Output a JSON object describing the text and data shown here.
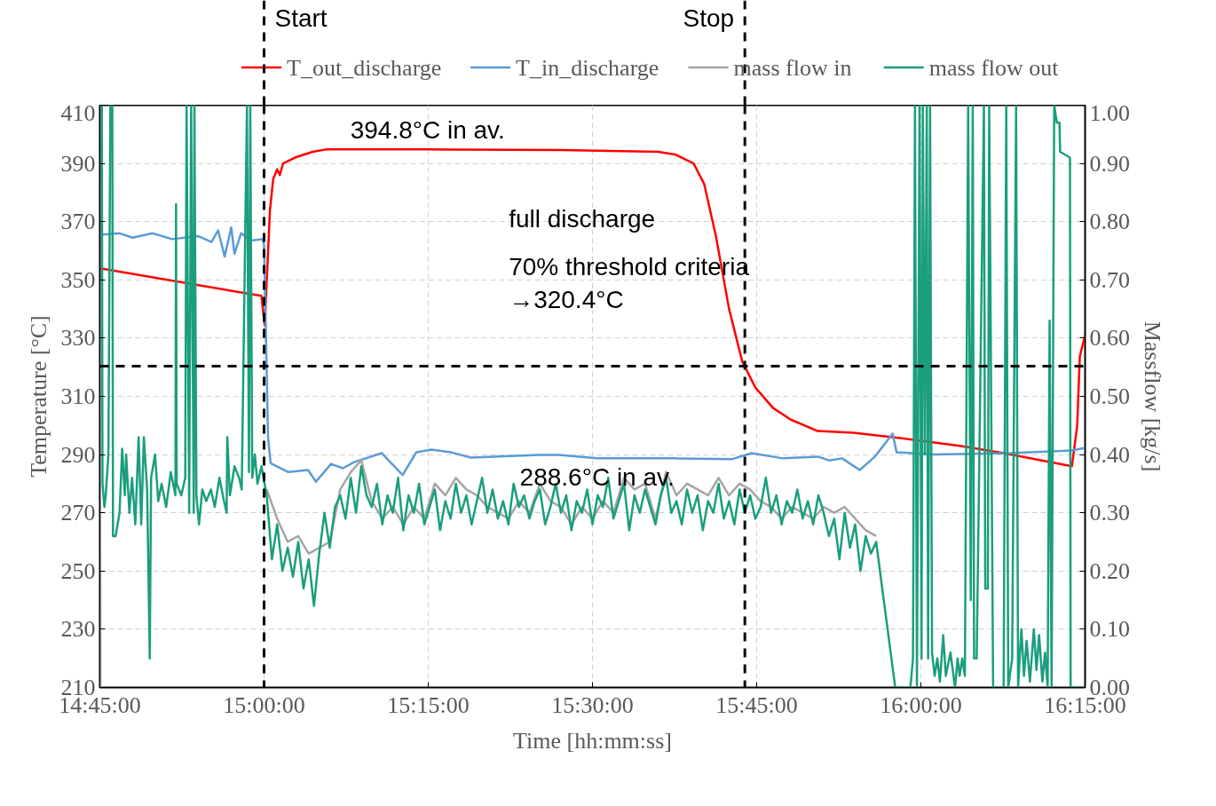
{
  "chart_data": {
    "type": "line",
    "xlabel": "Time [hh:mm:ss]",
    "ylabel": "Temperature [°C]",
    "y2label": "Massflow [kg/s]",
    "xlim": [
      14.75,
      16.25
    ],
    "xticks": [
      {
        "value": 14.75,
        "label": "14:45:00"
      },
      {
        "value": 15.0,
        "label": "15:00:00"
      },
      {
        "value": 15.25,
        "label": "15:15:00"
      },
      {
        "value": 15.5,
        "label": "15:30:00"
      },
      {
        "value": 15.75,
        "label": "15:45:00"
      },
      {
        "value": 16.0,
        "label": "16:00:00"
      },
      {
        "value": 16.25,
        "label": "16:15:00"
      }
    ],
    "ylim": [
      210,
      410
    ],
    "yticks": [
      210,
      230,
      250,
      270,
      290,
      310,
      330,
      350,
      370,
      390,
      410
    ],
    "y2lim": [
      0,
      1
    ],
    "y2ticks": [
      {
        "value": 0,
        "label": "0.00"
      },
      {
        "value": 0.1,
        "label": "0.10"
      },
      {
        "value": 0.2,
        "label": "0.20"
      },
      {
        "value": 0.3,
        "label": "0.30"
      },
      {
        "value": 0.4,
        "label": "0.40"
      },
      {
        "value": 0.5,
        "label": "0.50"
      },
      {
        "value": 0.6,
        "label": "0.60"
      },
      {
        "value": 0.7,
        "label": "0.70"
      },
      {
        "value": 0.8,
        "label": "0.80"
      },
      {
        "value": 0.9,
        "label": "0.90"
      },
      {
        "value": 1.0,
        "label": "1.00"
      }
    ],
    "grid": true,
    "legend": "top",
    "line_style": "solid",
    "marker": "none",
    "series": [
      {
        "name": "T_out_discharge",
        "color": "#ff0000",
        "x": [
          14.75,
          14.996,
          15.001,
          15.009,
          15.014,
          15.02,
          15.024,
          15.029,
          15.047,
          15.074,
          15.094,
          15.249,
          15.451,
          15.6,
          15.627,
          15.654,
          15.67,
          15.688,
          15.708,
          15.728,
          15.748,
          15.775,
          15.802,
          15.843,
          15.897,
          15.96,
          16.059,
          16.126,
          16.23,
          16.238,
          16.242,
          16.25
        ],
        "values": [
          354,
          344.5,
          334.4,
          374,
          384.7,
          388,
          386,
          390,
          392,
          394,
          394.8,
          394.8,
          394.6,
          394,
          393,
          390,
          383,
          365,
          340,
          322,
          313,
          306,
          302,
          298.1,
          297.5,
          295.9,
          293,
          290.5,
          286,
          300,
          323.7,
          331
        ]
      },
      {
        "name": "T_in_discharge",
        "color": "#5b9bd5",
        "x": [
          14.75,
          14.78,
          14.8,
          14.83,
          14.86,
          14.9,
          14.92,
          14.93,
          14.94,
          14.95,
          14.955,
          14.965,
          14.98,
          14.998,
          15.0,
          15.003,
          15.006,
          15.01,
          15.037,
          15.067,
          15.079,
          15.102,
          15.12,
          15.137,
          15.179,
          15.211,
          15.232,
          15.255,
          15.284,
          15.314,
          15.419,
          15.449,
          15.507,
          15.624,
          15.712,
          15.742,
          15.79,
          15.843,
          15.86,
          15.88,
          15.907,
          15.93,
          15.957,
          15.963,
          16.018,
          16.135,
          16.23,
          16.25
        ],
        "values": [
          365.5,
          366,
          364.5,
          366,
          364,
          365,
          363,
          367,
          358,
          368,
          359,
          366,
          363.5,
          364,
          362,
          330,
          296,
          287,
          284,
          284.7,
          280.7,
          286.8,
          285.3,
          287.4,
          290.5,
          283,
          290.8,
          291.7,
          290.8,
          289,
          289.9,
          289.9,
          288.7,
          288.7,
          288.4,
          290.5,
          288.7,
          289.3,
          288,
          288.7,
          284.7,
          289.3,
          297.2,
          290.8,
          290,
          290.5,
          291.4,
          292.3
        ]
      },
      {
        "name": "mass flow in",
        "color": "#a5a5a5",
        "axis": "y2",
        "x": [
          14.75,
          14.751,
          14.752,
          15.004,
          15.02,
          15.036,
          15.052,
          15.068,
          15.084,
          15.1,
          15.116,
          15.132,
          15.148,
          15.164,
          15.18,
          15.196,
          15.212,
          15.228,
          15.244,
          15.26,
          15.276,
          15.292,
          15.308,
          15.324,
          15.34,
          15.356,
          15.372,
          15.388,
          15.404,
          15.42,
          15.436,
          15.452,
          15.468,
          15.484,
          15.5,
          15.516,
          15.532,
          15.548,
          15.564,
          15.58,
          15.596,
          15.612,
          15.628,
          15.644,
          15.66,
          15.676,
          15.692,
          15.708,
          15.724,
          15.74,
          15.756,
          15.772,
          15.788,
          15.804,
          15.82,
          15.836,
          15.852,
          15.868,
          15.884,
          15.9,
          15.916,
          15.932
        ],
        "values": [
          0.7,
          0.0,
          null,
          0.34,
          0.29,
          0.25,
          0.26,
          0.23,
          0.24,
          0.25,
          0.34,
          0.37,
          0.39,
          0.32,
          0.29,
          0.31,
          0.28,
          0.31,
          0.29,
          0.35,
          0.33,
          0.36,
          0.34,
          0.33,
          0.31,
          0.3,
          0.29,
          0.32,
          0.3,
          0.35,
          0.32,
          0.31,
          0.28,
          0.31,
          0.29,
          0.32,
          0.3,
          0.36,
          0.34,
          0.35,
          0.29,
          0.37,
          0.33,
          0.35,
          0.34,
          0.33,
          0.36,
          0.33,
          0.35,
          0.34,
          0.32,
          0.31,
          0.29,
          0.31,
          0.3,
          0.29,
          0.31,
          0.3,
          0.31,
          0.29,
          0.27,
          0.26
        ]
      },
      {
        "name": "mass flow out",
        "color": "#1b9e7e",
        "axis": "y2",
        "x": [
          14.75,
          14.753,
          14.754,
          14.757,
          14.759,
          14.763,
          14.766,
          14.769,
          14.77,
          14.774,
          14.78,
          14.784,
          14.788,
          14.79,
          14.795,
          14.799,
          14.804,
          14.809,
          14.813,
          14.817,
          14.822,
          14.826,
          14.828,
          14.834,
          14.839,
          14.844,
          14.851,
          14.858,
          14.865,
          14.866,
          14.867,
          14.874,
          14.88,
          14.882,
          14.886,
          14.889,
          14.893,
          14.894,
          14.897,
          14.901,
          14.906,
          14.912,
          14.919,
          14.925,
          14.932,
          14.939,
          14.943,
          14.944,
          14.948,
          14.955,
          14.962,
          14.966,
          14.974,
          14.977,
          14.979,
          14.982,
          14.986,
          14.99,
          14.996,
          15.004,
          15.012,
          15.02,
          15.028,
          15.036,
          15.044,
          15.052,
          15.06,
          15.068,
          15.076,
          15.084,
          15.092,
          15.1,
          15.108,
          15.116,
          15.124,
          15.132,
          15.14,
          15.148,
          15.156,
          15.164,
          15.172,
          15.18,
          15.188,
          15.196,
          15.204,
          15.212,
          15.22,
          15.228,
          15.236,
          15.244,
          15.252,
          15.26,
          15.268,
          15.276,
          15.284,
          15.292,
          15.3,
          15.308,
          15.316,
          15.324,
          15.332,
          15.34,
          15.348,
          15.356,
          15.364,
          15.372,
          15.38,
          15.388,
          15.396,
          15.404,
          15.412,
          15.42,
          15.428,
          15.436,
          15.444,
          15.452,
          15.46,
          15.468,
          15.476,
          15.484,
          15.492,
          15.5,
          15.508,
          15.516,
          15.524,
          15.532,
          15.54,
          15.548,
          15.556,
          15.564,
          15.572,
          15.58,
          15.588,
          15.596,
          15.604,
          15.612,
          15.62,
          15.628,
          15.636,
          15.644,
          15.652,
          15.66,
          15.668,
          15.676,
          15.684,
          15.692,
          15.7,
          15.708,
          15.716,
          15.724,
          15.732,
          15.74,
          15.748,
          15.756,
          15.764,
          15.772,
          15.78,
          15.788,
          15.796,
          15.804,
          15.812,
          15.82,
          15.828,
          15.836,
          15.844,
          15.852,
          15.86,
          15.868,
          15.876,
          15.884,
          15.892,
          15.9,
          15.908,
          15.916,
          15.924,
          15.932,
          15.94,
          15.961,
          15.984,
          15.988,
          15.991,
          15.994,
          15.998,
          16.001,
          16.003,
          16.006,
          16.009,
          16.011,
          16.014,
          16.017,
          16.021,
          16.025,
          16.029,
          16.034,
          16.038,
          16.045,
          16.052,
          16.056,
          16.059,
          16.063,
          16.067,
          16.072,
          16.076,
          16.079,
          16.081,
          16.085,
          16.096,
          16.098,
          16.102,
          16.104,
          16.11,
          16.126,
          16.13,
          16.133,
          16.139,
          16.145,
          16.148,
          16.153,
          16.157,
          16.161,
          16.166,
          16.172,
          16.176,
          16.18,
          16.185,
          16.189,
          16.193,
          16.196,
          16.199,
          16.203,
          16.207,
          16.211,
          16.212,
          16.227,
          16.228,
          16.25
        ],
        "values": [
          1.0,
          1.0,
          0.35,
          0.31,
          0.33,
          0.4,
          1.0,
          1.0,
          0.26,
          0.26,
          0.3,
          0.41,
          0.33,
          0.4,
          0.3,
          0.36,
          0.28,
          0.43,
          0.28,
          0.43,
          0.34,
          0.05,
          0.36,
          0.4,
          0.32,
          0.35,
          0.31,
          0.37,
          0.33,
          0.83,
          0.35,
          0.33,
          0.36,
          1.0,
          0.3,
          1.0,
          0.3,
          1.0,
          0.33,
          0.28,
          0.34,
          0.32,
          0.34,
          0.31,
          0.36,
          0.32,
          0.3,
          0.43,
          0.33,
          0.38,
          0.36,
          0.34,
          1.0,
          0.37,
          1.0,
          0.36,
          0.4,
          0.35,
          0.38,
          0.33,
          0.22,
          0.28,
          0.2,
          0.24,
          0.19,
          0.25,
          0.17,
          0.22,
          0.14,
          0.23,
          0.3,
          0.24,
          0.31,
          0.33,
          0.29,
          0.36,
          0.3,
          0.38,
          0.33,
          0.31,
          0.35,
          0.28,
          0.33,
          0.3,
          0.36,
          0.27,
          0.33,
          0.3,
          0.35,
          0.28,
          0.31,
          0.34,
          0.27,
          0.32,
          0.29,
          0.35,
          0.3,
          0.33,
          0.28,
          0.32,
          0.36,
          0.3,
          0.34,
          0.29,
          0.32,
          0.28,
          0.35,
          0.31,
          0.33,
          0.29,
          0.32,
          0.34,
          0.28,
          0.31,
          0.35,
          0.3,
          0.33,
          0.27,
          0.32,
          0.3,
          0.34,
          0.28,
          0.33,
          0.31,
          0.36,
          0.29,
          0.32,
          0.35,
          0.27,
          0.33,
          0.3,
          0.34,
          0.31,
          0.28,
          0.33,
          0.36,
          0.3,
          0.32,
          0.28,
          0.34,
          0.3,
          0.33,
          0.27,
          0.32,
          0.3,
          0.35,
          0.29,
          0.32,
          0.28,
          0.34,
          0.3,
          0.33,
          0.29,
          0.31,
          0.36,
          0.3,
          0.33,
          0.28,
          0.32,
          0.3,
          0.34,
          0.29,
          0.32,
          0.28,
          0.33,
          0.3,
          0.26,
          0.29,
          0.22,
          0.3,
          0.24,
          0.28,
          0.2,
          0.26,
          0.23,
          0.25,
          0.18,
          0.0,
          0.0,
          0.05,
          1.0,
          0.0,
          1.0,
          0.05,
          1.0,
          0.4,
          1.0,
          0.05,
          1.0,
          0.06,
          0.02,
          0.05,
          0.01,
          0.09,
          0.02,
          0.06,
          0.0,
          0.05,
          0.02,
          0.05,
          0.02,
          1.0,
          0.15,
          1.0,
          0.05,
          0.05,
          1.0,
          0.17,
          0.17,
          1.0,
          0.0,
          0.0,
          1.0,
          0.0,
          0.05,
          1.0,
          0.0,
          0.1,
          0.02,
          0.08,
          0.01,
          0.1,
          0.03,
          0.09,
          0.01,
          0.06,
          0.0,
          0.63,
          0.0,
          1.0,
          0.97,
          0.97,
          0.92,
          0.91,
          0.0,
          0.0
        ]
      }
    ],
    "ref_lines": [
      {
        "axis": "x",
        "value": 15.0,
        "label": "Start",
        "color": "#000000",
        "line_style": "dashed"
      },
      {
        "axis": "x",
        "value": 15.732,
        "label": "Stop",
        "color": "#000000",
        "line_style": "dashed"
      },
      {
        "axis": "y",
        "value": 320.4,
        "color": "#000000",
        "line_style": "dashed"
      }
    ],
    "annotations": [
      {
        "text": "394.8°C in av.",
        "x": 15.249,
        "y": 394.8
      },
      "full discharge",
      "70% threshold criteria\n→320.4°C",
      {
        "text": "288.6°C in av.",
        "x": 15.507,
        "y": 288.7
      }
    ]
  }
}
